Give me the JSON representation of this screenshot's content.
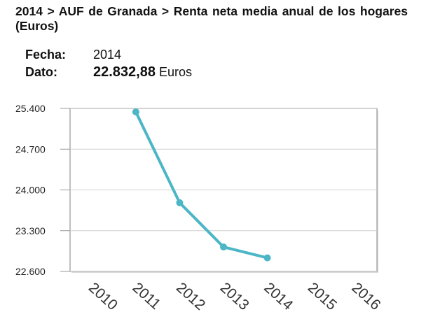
{
  "chart_data": {
    "type": "line",
    "title": "2014 > AUF de Granada > Renta neta media anual de los hogares (Euros)",
    "info": {
      "fecha_label": "Fecha:",
      "fecha": "2014",
      "dato_label": "Dato:",
      "dato": "22.832,88",
      "unit": "Euros"
    },
    "categories": [
      "2010",
      "2011",
      "2012",
      "2013",
      "2014",
      "2015",
      "2016"
    ],
    "series": [
      {
        "color": "#4cb6c6",
        "values": [
          null,
          25340,
          23780,
          23020,
          22832.88,
          null,
          null
        ]
      }
    ],
    "ylim": [
      22600,
      25400
    ],
    "yticks": [
      {
        "value": 22600,
        "label": "22.600"
      },
      {
        "value": 23300,
        "label": "23.300"
      },
      {
        "value": 24000,
        "label": "24.000"
      },
      {
        "value": 24700,
        "label": "24.700"
      },
      {
        "value": 25400,
        "label": "25.400"
      }
    ],
    "grid": true
  }
}
